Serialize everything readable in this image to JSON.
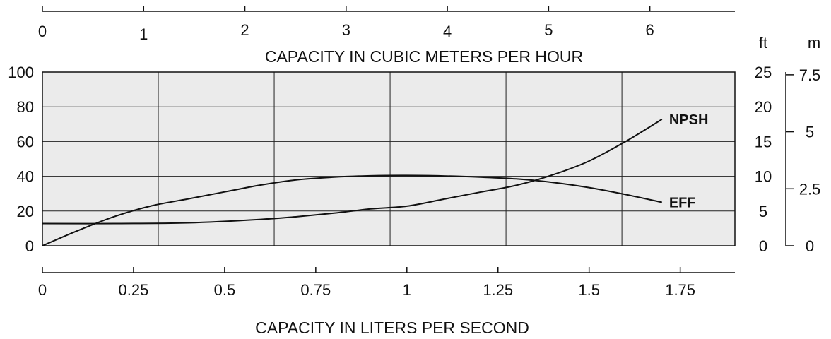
{
  "chart_data": {
    "type": "line",
    "title": "",
    "grid": true,
    "plot_background": "#ebebeb",
    "line_color": "#111111",
    "x_axis_bottom": {
      "label": "CAPACITY IN LITERS PER SECOND",
      "range": [
        0,
        1.9
      ],
      "ticks": [
        0,
        0.25,
        0.5,
        0.75,
        1,
        1.25,
        1.5,
        1.75
      ],
      "tick_labels": [
        "0",
        "0.25",
        "0.5",
        "0.75",
        "1",
        "1.25",
        "1.5",
        "1.75"
      ]
    },
    "x_axis_top": {
      "label": "CAPACITY IN CUBIC METERS PER HOUR",
      "range": [
        0,
        6.84
      ],
      "ticks": [
        0,
        1,
        2,
        3,
        4,
        5,
        6
      ],
      "tick_labels": [
        "0",
        "1",
        "2",
        "3",
        "4",
        "5",
        "6"
      ]
    },
    "y_axis_left": {
      "label": "",
      "range": [
        0,
        100
      ],
      "ticks": [
        0,
        20,
        40,
        60,
        80,
        100
      ],
      "tick_labels": [
        "0",
        "20",
        "40",
        "60",
        "80",
        "100"
      ]
    },
    "y_axis_ft": {
      "label": "ft",
      "range": [
        0,
        25
      ],
      "ticks": [
        0,
        5,
        10,
        15,
        20,
        25
      ],
      "tick_labels": [
        "0",
        "5",
        "10",
        "15",
        "20",
        "25"
      ]
    },
    "y_axis_m": {
      "label": "m",
      "range": [
        0,
        7.62
      ],
      "ticks": [
        0,
        2.5,
        5,
        7.5
      ],
      "tick_labels": [
        "0",
        "2.5",
        "5",
        "7.5"
      ]
    },
    "gridlines_x": [
      0.318,
      0.636,
      0.954,
      1.272,
      1.59
    ],
    "gridlines_y": [
      20,
      40,
      60,
      80
    ],
    "series": [
      {
        "name": "EFF",
        "axis": "left",
        "x": [
          0,
          0.1,
          0.2,
          0.3,
          0.4,
          0.5,
          0.6,
          0.7,
          0.8,
          0.9,
          1.0,
          1.1,
          1.2,
          1.3,
          1.4,
          1.5,
          1.6,
          1.7
        ],
        "y": [
          0,
          9,
          17,
          23,
          27,
          31,
          35,
          38,
          39.5,
          40.3,
          40.5,
          40.2,
          39.5,
          38.5,
          36.5,
          33.5,
          29.5,
          25
        ]
      },
      {
        "name": "NPSH",
        "axis": "ft",
        "x": [
          0,
          0.2,
          0.4,
          0.6,
          0.7,
          0.8,
          0.9,
          1.0,
          1.1,
          1.2,
          1.3,
          1.4,
          1.5,
          1.6,
          1.7
        ],
        "y": [
          3.2,
          3.2,
          3.3,
          3.8,
          4.2,
          4.7,
          5.3,
          5.7,
          6.7,
          7.7,
          8.7,
          10.2,
          12.2,
          15.0,
          18.2
        ]
      }
    ]
  }
}
